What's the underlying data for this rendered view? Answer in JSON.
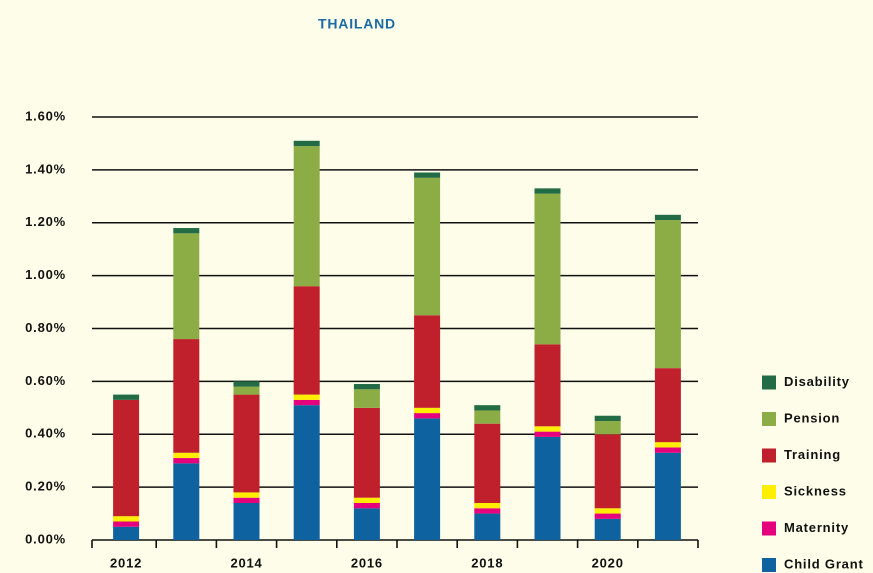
{
  "chart_data": {
    "type": "stacked_bar",
    "title": "THAILAND",
    "categories": [
      "2012",
      null,
      "2014",
      null,
      "2016",
      null,
      "2018",
      null,
      "2020",
      null
    ],
    "series": [
      {
        "name": "Child Grant",
        "color": "#0e629f",
        "values": [
          0.05,
          0.29,
          0.14,
          0.51,
          0.12,
          0.46,
          0.1,
          0.39,
          0.08,
          0.33
        ]
      },
      {
        "name": "Maternity",
        "color": "#e5007e",
        "values": [
          0.02,
          0.02,
          0.02,
          0.02,
          0.02,
          0.02,
          0.02,
          0.02,
          0.02,
          0.02
        ]
      },
      {
        "name": "Sickness",
        "color": "#ffee00",
        "values": [
          0.02,
          0.02,
          0.02,
          0.02,
          0.02,
          0.02,
          0.02,
          0.02,
          0.02,
          0.02
        ]
      },
      {
        "name": "Training",
        "color": "#c0202b",
        "values": [
          0.44,
          0.43,
          0.37,
          0.41,
          0.34,
          0.35,
          0.3,
          0.31,
          0.28,
          0.28
        ]
      },
      {
        "name": "Pension",
        "color": "#8cad45",
        "values": [
          0,
          0.4,
          0.03,
          0.53,
          0.07,
          0.52,
          0.05,
          0.57,
          0.05,
          0.56
        ]
      },
      {
        "name": "Disability",
        "color": "#226b45",
        "values": [
          0.02,
          0.02,
          0.02,
          0.02,
          0.02,
          0.02,
          0.02,
          0.02,
          0.02,
          0.02
        ]
      }
    ],
    "ylim": [
      0,
      1.6
    ],
    "yticks": [
      {
        "value": 0,
        "label": "0.00%"
      },
      {
        "value": 0.2,
        "label": "0.20%"
      },
      {
        "value": 0.4,
        "label": "0.40%"
      },
      {
        "value": 0.6,
        "label": "0.60%"
      },
      {
        "value": 0.8,
        "label": "0.80%"
      },
      {
        "value": 1.0,
        "label": "1.00%"
      },
      {
        "value": 1.2,
        "label": "1.20%"
      },
      {
        "value": 1.4,
        "label": "1.40%"
      },
      {
        "value": 1.6,
        "label": "1.60%"
      }
    ],
    "grid": true,
    "legend": "right"
  }
}
